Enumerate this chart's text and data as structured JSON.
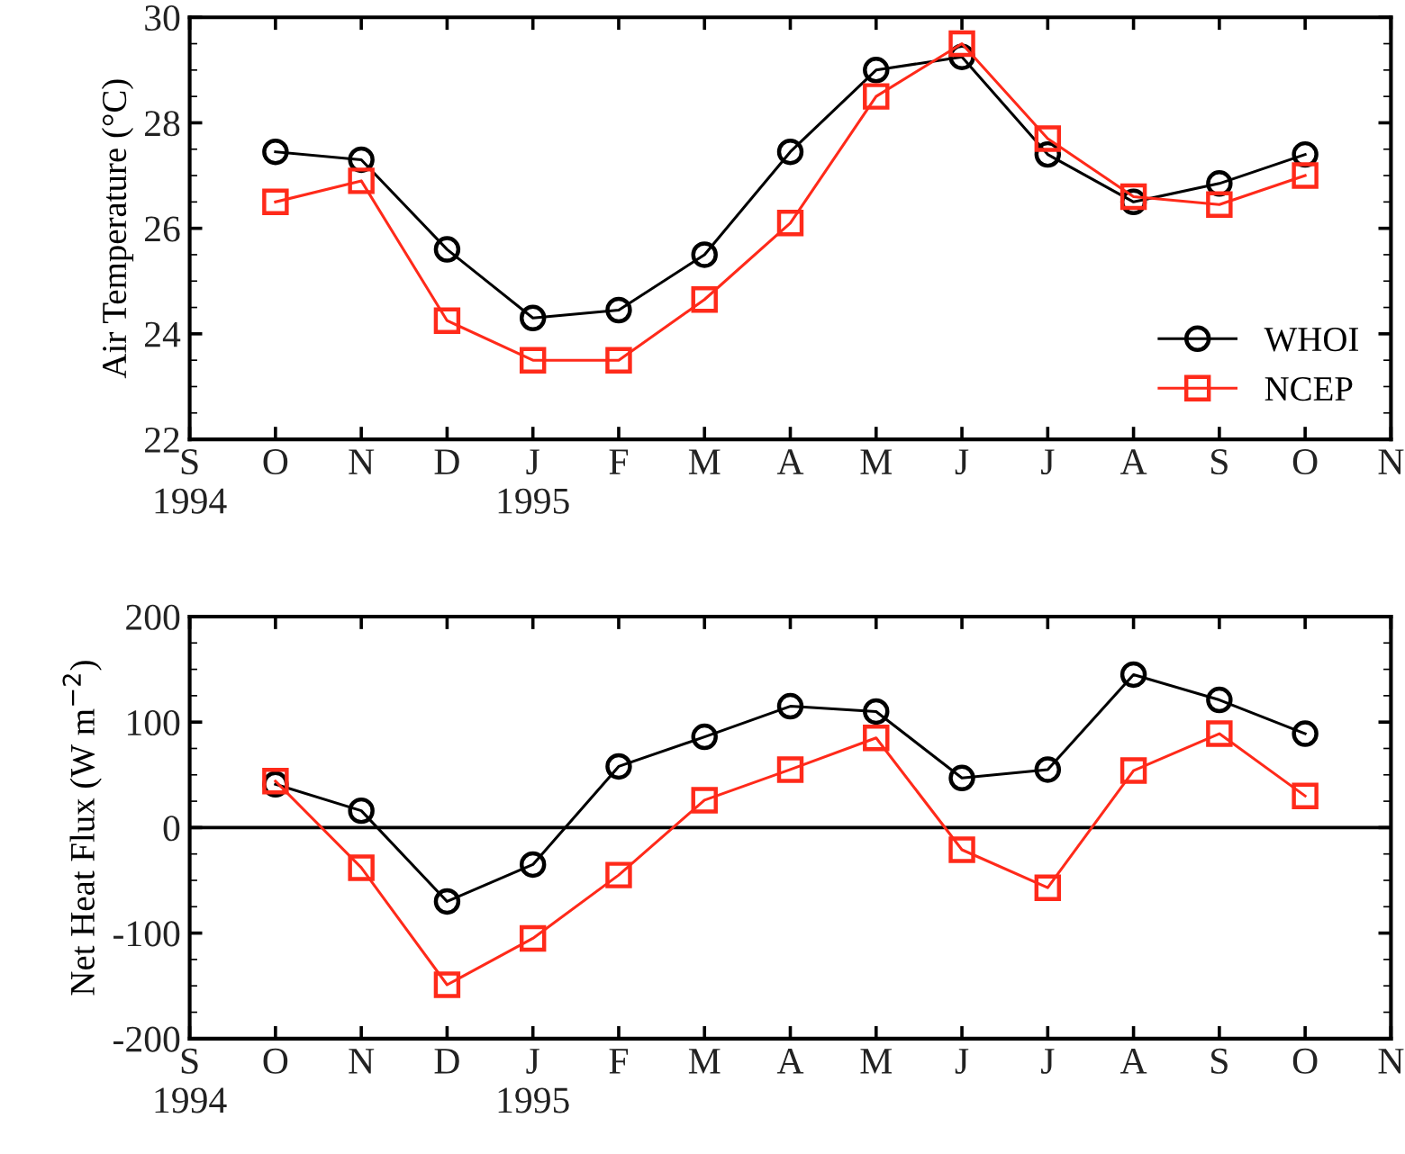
{
  "chart_data": [
    {
      "type": "line",
      "ylabel": "Air Temperature (°C)",
      "categories": [
        "S\n1994",
        "O",
        "N",
        "D",
        "J\n1995",
        "F",
        "M",
        "A",
        "M",
        "J",
        "J",
        "A",
        "S",
        "O",
        "N"
      ],
      "ylim": [
        22,
        30
      ],
      "yticks": [
        22,
        24,
        26,
        28,
        30
      ],
      "legend": "bottom right",
      "grid": false,
      "series": [
        {
          "name": "WHOI",
          "color": "#000000",
          "marker": "circle",
          "values": [
            null,
            27.45,
            27.3,
            25.6,
            24.3,
            24.45,
            25.5,
            27.45,
            29.0,
            29.25,
            27.4,
            26.5,
            26.85,
            27.4,
            null
          ]
        },
        {
          "name": "NCEP",
          "color": "#ff2a1a",
          "marker": "square",
          "values": [
            null,
            26.5,
            26.9,
            24.25,
            23.5,
            23.5,
            24.65,
            26.1,
            28.5,
            29.5,
            27.7,
            26.6,
            26.45,
            27.0,
            null
          ]
        }
      ]
    },
    {
      "type": "line",
      "ylabel": "Net Heat Flux (W m$^{−2}$)",
      "categories": [
        "S\n1994",
        "O",
        "N",
        "D",
        "J\n1995",
        "F",
        "M",
        "A",
        "M",
        "J",
        "J",
        "A",
        "S",
        "O",
        "N"
      ],
      "ylim": [
        -200,
        200
      ],
      "yticks": [
        -200,
        -100,
        0,
        100,
        200
      ],
      "legend": false,
      "grid": false,
      "ref_lines": [
        {
          "axis": "y",
          "value": 0,
          "color": "#000000"
        }
      ],
      "series": [
        {
          "color": "#000000",
          "marker": "circle",
          "values": [
            null,
            41,
            16,
            -70,
            -35,
            58,
            86,
            115,
            110,
            47,
            55,
            145,
            121,
            89,
            null
          ]
        },
        {
          "color": "#ff2a1a",
          "marker": "square",
          "values": [
            null,
            44,
            -38,
            -149,
            -105,
            -45,
            26,
            55,
            85,
            -21,
            -57,
            54,
            89,
            30,
            null
          ]
        }
      ]
    }
  ]
}
